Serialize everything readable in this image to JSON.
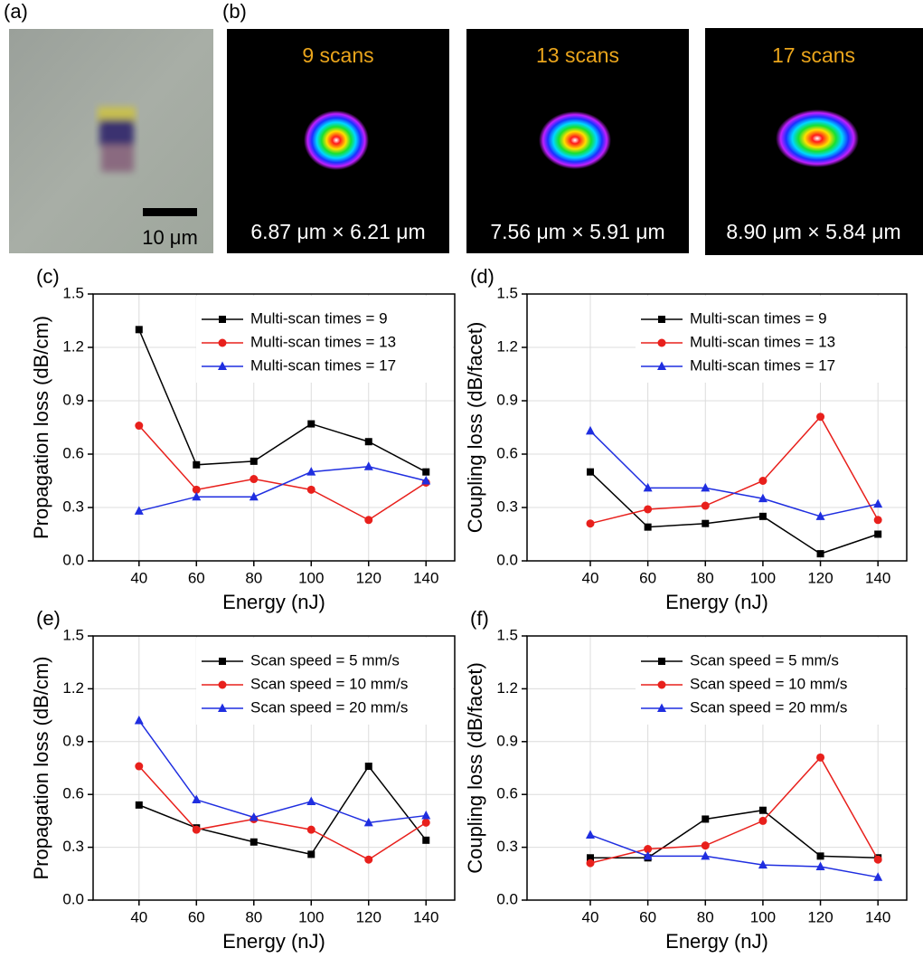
{
  "panels": {
    "a": {
      "label": "(a)",
      "scale_bar": "10 μm"
    },
    "b": {
      "label": "(b)",
      "images": [
        {
          "title": "9 scans",
          "size": "6.87 μm × 6.21 μm"
        },
        {
          "title": "13 scans",
          "size": "7.56 μm × 5.91 μm"
        },
        {
          "title": "17 scans",
          "size": "8.90 μm × 5.84 μm"
        }
      ]
    }
  },
  "chart_data": [
    {
      "type": "line",
      "panel_label": "(c)",
      "xlabel": "Energy (nJ)",
      "ylabel": "Propagation loss (dB/cm)",
      "x": [
        40,
        60,
        80,
        100,
        120,
        140
      ],
      "xlim": [
        24,
        150
      ],
      "xticks": [
        40,
        60,
        80,
        100,
        120,
        140
      ],
      "ylim": [
        0,
        1.5
      ],
      "yticks": [
        {
          "value": 0,
          "label": "0.0"
        },
        0.3,
        0.6,
        0.9,
        1.2,
        1.5
      ],
      "grid": true,
      "legend": "upper right",
      "series": [
        {
          "name": "Multi-scan times = 9",
          "color": "#000000",
          "marker": "square",
          "values": [
            1.3,
            0.54,
            0.56,
            0.77,
            0.67,
            0.5
          ]
        },
        {
          "name": "Multi-scan times = 13",
          "color": "#e8201c",
          "marker": "circle",
          "values": [
            0.76,
            0.4,
            0.46,
            0.4,
            0.23,
            0.44
          ]
        },
        {
          "name": "Multi-scan times = 17",
          "color": "#1f2ee0",
          "marker": "triangle",
          "values": [
            0.28,
            0.36,
            0.36,
            0.5,
            0.53,
            0.45
          ]
        }
      ]
    },
    {
      "type": "line",
      "panel_label": "(d)",
      "xlabel": "Energy (nJ)",
      "ylabel": "Coupling loss (dB/facet)",
      "x": [
        40,
        60,
        80,
        100,
        120,
        140
      ],
      "xlim": [
        18,
        150
      ],
      "xticks": [
        40,
        60,
        80,
        100,
        120,
        140
      ],
      "ylim": [
        0,
        1.5
      ],
      "yticks": [
        {
          "value": 0,
          "label": "0.0"
        },
        0.3,
        0.6,
        0.9,
        1.2,
        1.5
      ],
      "grid": true,
      "legend": "upper right",
      "series": [
        {
          "name": "Multi-scan times = 9",
          "color": "#000000",
          "marker": "square",
          "values": [
            0.5,
            0.19,
            0.21,
            0.25,
            0.04,
            0.15
          ]
        },
        {
          "name": "Multi-scan times = 13",
          "color": "#e8201c",
          "marker": "circle",
          "values": [
            0.21,
            0.29,
            0.31,
            0.45,
            0.81,
            0.23
          ]
        },
        {
          "name": "Multi-scan times = 17",
          "color": "#1f2ee0",
          "marker": "triangle",
          "values": [
            0.73,
            0.41,
            0.41,
            0.35,
            0.25,
            0.32
          ]
        }
      ]
    },
    {
      "type": "line",
      "panel_label": "(e)",
      "xlabel": "Energy (nJ)",
      "ylabel": "Propagation loss (dB/cm)",
      "x": [
        40,
        60,
        80,
        100,
        120,
        140
      ],
      "xlim": [
        24,
        150
      ],
      "xticks": [
        40,
        60,
        80,
        100,
        120,
        140
      ],
      "ylim": [
        0,
        1.5
      ],
      "yticks": [
        {
          "value": 0,
          "label": "0.0"
        },
        0.3,
        0.6,
        0.9,
        1.2,
        1.5
      ],
      "grid": true,
      "legend": "upper right",
      "series": [
        {
          "name": "Scan speed = 5 mm/s",
          "color": "#000000",
          "marker": "square",
          "values": [
            0.54,
            0.41,
            0.33,
            0.26,
            0.76,
            0.34
          ]
        },
        {
          "name": "Scan speed = 10 mm/s",
          "color": "#e8201c",
          "marker": "circle",
          "values": [
            0.76,
            0.4,
            0.46,
            0.4,
            0.23,
            0.44
          ]
        },
        {
          "name": "Scan speed = 20 mm/s",
          "color": "#1f2ee0",
          "marker": "triangle",
          "values": [
            1.02,
            0.57,
            0.47,
            0.56,
            0.44,
            0.48
          ]
        }
      ]
    },
    {
      "type": "line",
      "panel_label": "(f)",
      "xlabel": "Energy (nJ)",
      "ylabel": "Coupling loss (dB/facet)",
      "x": [
        40,
        60,
        80,
        100,
        120,
        140
      ],
      "xlim": [
        18,
        150
      ],
      "xticks": [
        40,
        60,
        80,
        100,
        120,
        140
      ],
      "ylim": [
        0,
        1.5
      ],
      "yticks": [
        {
          "value": 0,
          "label": "0.0"
        },
        0.3,
        0.6,
        0.9,
        1.2,
        1.5
      ],
      "grid": true,
      "legend": "upper right",
      "series": [
        {
          "name": "Scan speed = 5 mm/s",
          "color": "#000000",
          "marker": "square",
          "values": [
            0.24,
            0.24,
            0.46,
            0.51,
            0.25,
            0.24
          ]
        },
        {
          "name": "Scan speed = 10 mm/s",
          "color": "#e8201c",
          "marker": "circle",
          "values": [
            0.21,
            0.29,
            0.31,
            0.45,
            0.81,
            0.23
          ]
        },
        {
          "name": "Scan speed = 20 mm/s",
          "color": "#1f2ee0",
          "marker": "triangle",
          "values": [
            0.37,
            0.25,
            0.25,
            0.2,
            0.19,
            0.13
          ]
        }
      ]
    }
  ]
}
